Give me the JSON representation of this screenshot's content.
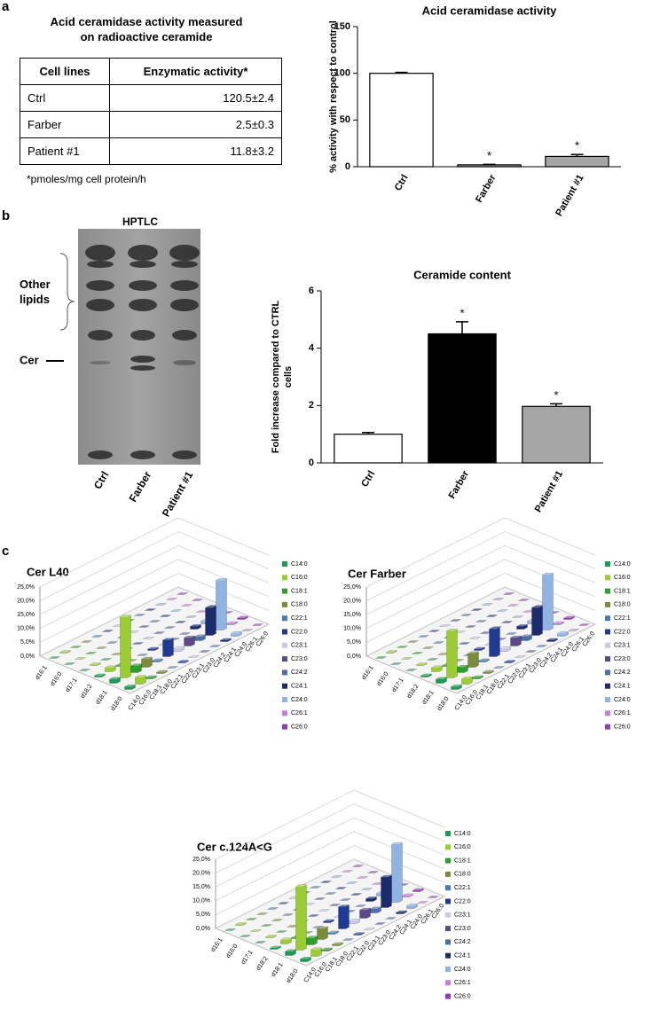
{
  "panel_labels": [
    "a",
    "b",
    "c"
  ],
  "table": {
    "title": "Acid ceramidase activity measured on radioactive ceramide",
    "columns": [
      "Cell lines",
      "Enzymatic activity*"
    ],
    "rows": [
      [
        "Ctrl",
        "120.5±2.4"
      ],
      [
        "Farber",
        "2.5±0.3"
      ],
      [
        "Patient #1",
        "11.8±3.2"
      ]
    ],
    "footnote": "*pmoles/mg cell protein/h"
  },
  "hptlc": {
    "title": "HPTLC",
    "lanes": [
      "Ctrl",
      "Farber",
      "Patient #1"
    ],
    "labels": [
      "Other lipids",
      "Cer"
    ]
  },
  "chart_data": [
    {
      "type": "bar",
      "title": "Acid ceramidase activity",
      "ylabel": "% activity with respect to control",
      "categories": [
        "Ctrl",
        "Farber",
        "Patient #1"
      ],
      "values": [
        100,
        2,
        11
      ],
      "errors": [
        1,
        0.5,
        2
      ],
      "significance": [
        null,
        "*",
        "*"
      ],
      "colors": [
        "#ffffff",
        "#a6a6a6",
        "#a6a6a6"
      ],
      "ylim": [
        0,
        150
      ],
      "yticks": [
        0,
        50,
        100,
        150
      ]
    },
    {
      "type": "bar",
      "title": "Ceramide content",
      "ylabel": "Fold increase compared to CTRL cells",
      "categories": [
        "Ctrl",
        "Farber",
        "Patient #1"
      ],
      "values": [
        1,
        4.5,
        1.97
      ],
      "errors": [
        0.06,
        0.42,
        0.09
      ],
      "significance": [
        null,
        "*",
        "*"
      ],
      "colors": [
        "#ffffff",
        "#000000",
        "#a6a6a6"
      ],
      "ylim": [
        0,
        6
      ],
      "yticks": [
        0,
        2,
        4,
        6
      ]
    },
    {
      "type": "bar3d",
      "title": "Cer L40",
      "categories": [
        "d16:1",
        "d16:0",
        "d17:1",
        "d18:2",
        "d18:1",
        "d18:0"
      ],
      "ylim": [
        0,
        25
      ],
      "yticks": [
        {
          "value": 0,
          "label": "0,0%"
        },
        {
          "value": 5,
          "label": "5,0%"
        },
        {
          "value": 10,
          "label": "10,0%"
        },
        {
          "value": 15,
          "label": "15,0%"
        },
        {
          "value": 20,
          "label": "20,0%"
        },
        {
          "value": 25,
          "label": "25,0%"
        }
      ],
      "series": [
        {
          "name": "C14:0",
          "color": "#1b9a50",
          "values": [
            0,
            0,
            0,
            0.5,
            1.5,
            1
          ]
        },
        {
          "name": "C16:0",
          "color": "#9acd32",
          "values": [
            0.3,
            0,
            0.3,
            1.5,
            22,
            2.5
          ]
        },
        {
          "name": "C18:1",
          "color": "#2e9e2e",
          "values": [
            0,
            0,
            0,
            0.3,
            2.5,
            0.5
          ]
        },
        {
          "name": "C18:0",
          "color": "#7a8b3a",
          "values": [
            0,
            0,
            0,
            0,
            3,
            0.5
          ]
        },
        {
          "name": "C22:1",
          "color": "#4a7ab5",
          "values": [
            0,
            0,
            0,
            0,
            0.5,
            0
          ]
        },
        {
          "name": "C22:0",
          "color": "#1f3a93",
          "values": [
            0,
            0,
            0,
            0.5,
            6,
            0.3
          ]
        },
        {
          "name": "C23:1",
          "color": "#c8c8e8",
          "values": [
            0,
            0,
            0,
            0,
            1,
            0
          ]
        },
        {
          "name": "C23:0",
          "color": "#5a4a8a",
          "values": [
            0,
            0,
            0,
            0,
            3,
            0
          ]
        },
        {
          "name": "C24:2",
          "color": "#4a6fa5",
          "values": [
            0,
            0,
            0,
            0,
            1.5,
            0
          ]
        },
        {
          "name": "C24:1",
          "color": "#1a2c6e",
          "values": [
            0,
            0,
            0,
            1,
            10,
            0.5
          ]
        },
        {
          "name": "C24:0",
          "color": "#8fb4e3",
          "values": [
            0,
            0,
            0,
            1,
            18,
            1
          ]
        },
        {
          "name": "C26:1",
          "color": "#c77ddb",
          "values": [
            0,
            0,
            0,
            0,
            0.5,
            0
          ]
        },
        {
          "name": "C26:0",
          "color": "#8a3fb5",
          "values": [
            0,
            0,
            0,
            0,
            0.5,
            0
          ]
        }
      ]
    },
    {
      "type": "bar3d",
      "title": "Cer Farber",
      "categories": [
        "d16:1",
        "d16:0",
        "d17:1",
        "d18:2",
        "d18:1",
        "d18:0"
      ],
      "ylim": [
        0,
        25
      ],
      "yticks": [
        {
          "value": 0,
          "label": "0,0%"
        },
        {
          "value": 5,
          "label": "5,0%"
        },
        {
          "value": 10,
          "label": "10,0%"
        },
        {
          "value": 15,
          "label": "15,0%"
        },
        {
          "value": 20,
          "label": "20,0%"
        },
        {
          "value": 25,
          "label": "25,0%"
        }
      ],
      "series": [
        {
          "name": "C14:0",
          "color": "#1b9a50",
          "values": [
            0,
            0,
            0,
            0.5,
            1.5,
            1
          ]
        },
        {
          "name": "C16:0",
          "color": "#9acd32",
          "values": [
            0.3,
            0,
            0.3,
            1.5,
            17,
            2
          ]
        },
        {
          "name": "C18:1",
          "color": "#2e9e2e",
          "values": [
            0,
            0,
            0,
            0.3,
            2,
            0.5
          ]
        },
        {
          "name": "C18:0",
          "color": "#7a8b3a",
          "values": [
            0,
            0,
            0,
            0,
            5,
            0.5
          ]
        },
        {
          "name": "C22:1",
          "color": "#4a7ab5",
          "values": [
            0,
            0,
            0,
            0,
            0.5,
            0
          ]
        },
        {
          "name": "C22:0",
          "color": "#1f3a93",
          "values": [
            0,
            0,
            0,
            0.5,
            10,
            0.3
          ]
        },
        {
          "name": "C23:1",
          "color": "#c8c8e8",
          "values": [
            0,
            0,
            0,
            0,
            1,
            0
          ]
        },
        {
          "name": "C23:0",
          "color": "#5a4a8a",
          "values": [
            0,
            0,
            0,
            0,
            3,
            0
          ]
        },
        {
          "name": "C24:2",
          "color": "#4a6fa5",
          "values": [
            0,
            0,
            0,
            0,
            1.5,
            0
          ]
        },
        {
          "name": "C24:1",
          "color": "#1a2c6e",
          "values": [
            0,
            0,
            0,
            1,
            10,
            0.5
          ]
        },
        {
          "name": "C24:0",
          "color": "#8fb4e3",
          "values": [
            0,
            0,
            0,
            1,
            20,
            1
          ]
        },
        {
          "name": "C26:1",
          "color": "#c77ddb",
          "values": [
            0,
            0,
            0,
            0,
            0.5,
            0
          ]
        },
        {
          "name": "C26:0",
          "color": "#8a3fb5",
          "values": [
            0,
            0,
            0,
            0,
            0.5,
            0
          ]
        }
      ]
    },
    {
      "type": "bar3d",
      "title": "Cer c.124A<G",
      "categories": [
        "d16:1",
        "d16:0",
        "d17:1",
        "d18:2",
        "d18:1",
        "d18:0"
      ],
      "ylim": [
        0,
        25
      ],
      "yticks": [
        {
          "value": 0,
          "label": "0,0%"
        },
        {
          "value": 5,
          "label": "5,0%"
        },
        {
          "value": 10,
          "label": "10,0%"
        },
        {
          "value": 15,
          "label": "15,0%"
        },
        {
          "value": 20,
          "label": "20,0%"
        },
        {
          "value": 25,
          "label": "25,0%"
        }
      ],
      "series": [
        {
          "name": "C14:0",
          "color": "#1b9a50",
          "values": [
            0,
            0,
            0,
            0.5,
            1.5,
            1
          ]
        },
        {
          "name": "C16:0",
          "color": "#9acd32",
          "values": [
            0.3,
            0,
            0.3,
            1.5,
            23,
            2.5
          ]
        },
        {
          "name": "C18:1",
          "color": "#2e9e2e",
          "values": [
            0,
            0,
            0,
            0.3,
            2.5,
            0.5
          ]
        },
        {
          "name": "C18:0",
          "color": "#7a8b3a",
          "values": [
            0,
            0,
            0,
            0,
            4,
            0.5
          ]
        },
        {
          "name": "C22:1",
          "color": "#4a7ab5",
          "values": [
            0,
            0,
            0,
            0,
            0.5,
            0
          ]
        },
        {
          "name": "C22:0",
          "color": "#1f3a93",
          "values": [
            0,
            0,
            0,
            0.5,
            8,
            0.3
          ]
        },
        {
          "name": "C23:1",
          "color": "#c8c8e8",
          "values": [
            0,
            0,
            0,
            0,
            1,
            0
          ]
        },
        {
          "name": "C23:0",
          "color": "#5a4a8a",
          "values": [
            0,
            0,
            0,
            0,
            3,
            0
          ]
        },
        {
          "name": "C24:2",
          "color": "#4a6fa5",
          "values": [
            0,
            0,
            0,
            0,
            1.5,
            0
          ]
        },
        {
          "name": "C24:1",
          "color": "#1a2c6e",
          "values": [
            0,
            0,
            0,
            1,
            11,
            0.5
          ]
        },
        {
          "name": "C24:0",
          "color": "#8fb4e3",
          "values": [
            0,
            0,
            0,
            1,
            21,
            1
          ]
        },
        {
          "name": "C26:1",
          "color": "#c77ddb",
          "values": [
            0,
            0,
            0,
            0,
            0.5,
            0
          ]
        },
        {
          "name": "C26:0",
          "color": "#8a3fb5",
          "values": [
            0,
            0,
            0,
            0,
            0.5,
            0
          ]
        }
      ]
    }
  ]
}
